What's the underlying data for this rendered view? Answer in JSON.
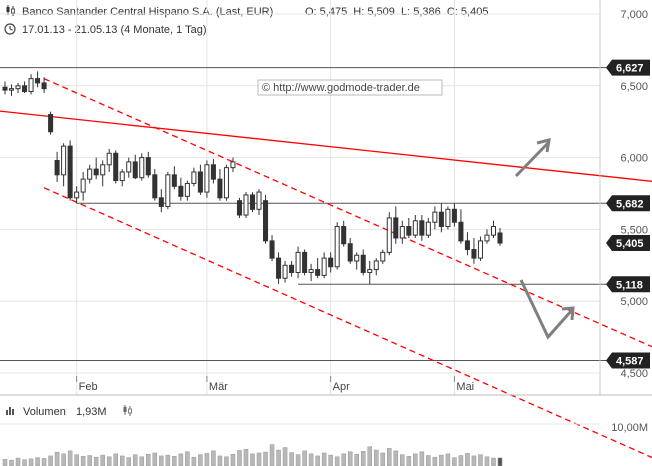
{
  "header": {
    "title": "Banco Santander Central Hispano S.A. (Last, EUR)",
    "ohlc": "O: 5,475  H: 5,509  L: 5,386  C: 5,405",
    "period": "17.01.13 - 21.05.13 (4 Monate, 1 Tag)",
    "chart_icon": "candlestick-icon",
    "clock_icon": "clock-icon"
  },
  "watermark": "© http://www.godmode-trader.de",
  "volume_panel": {
    "label": "Volumen",
    "value": "1,93M",
    "axis_label": "10,00M",
    "max_value_m": 10.0
  },
  "colors": {
    "candle": "#333333",
    "resistance_line": "#ff0000",
    "channel_lines": "#ff0000",
    "horizontal_levels": "#555555",
    "badge_bg": "#222222",
    "arrows": "#7f7f7f",
    "volume_bars": "#b8b8b8",
    "grid": "#e4e4e4"
  },
  "chart_data": {
    "type": "candlestick",
    "title": "Banco Santander Central Hispano S.A. (Last, EUR)",
    "ylim": [
      4.2,
      7.0
    ],
    "y_ticks": [
      "7,000",
      "6,500",
      "6,000",
      "5,500",
      "5,000",
      "4,500"
    ],
    "y_tick_values": [
      7.0,
      6.5,
      6.0,
      5.5,
      5.0,
      4.5
    ],
    "x_labels": [
      "Feb",
      "Mär",
      "Apr",
      "Mai"
    ],
    "x_label_days": [
      11,
      31,
      50,
      69
    ],
    "num_days": 86,
    "levels": [
      {
        "label": "6,627",
        "value": 6.627
      },
      {
        "label": "5,682",
        "value": 5.682
      },
      {
        "label": "5,118",
        "value": 5.118
      },
      {
        "label": "4,587",
        "value": 4.587
      }
    ],
    "last_price": {
      "label": "5,405",
      "value": 5.405
    },
    "level_segments": [
      {
        "value": 5.682,
        "from_day": 11,
        "to_day": 86
      },
      {
        "value": 5.118,
        "from_day": 45,
        "to_day": 86
      }
    ],
    "trend_lines": [
      {
        "name": "resistance",
        "style": "solid",
        "points": [
          [
            0,
            6.32
          ],
          [
            86,
            5.9
          ]
        ]
      },
      {
        "name": "channel-upper",
        "style": "dashed",
        "points": [
          [
            6,
            6.55
          ],
          [
            86,
            4.95
          ]
        ]
      },
      {
        "name": "channel-lower",
        "style": "dashed",
        "points": [
          [
            6,
            5.79
          ],
          [
            86,
            4.18
          ]
        ]
      }
    ],
    "ohlc": [
      [
        6.49,
        6.53,
        6.44,
        6.47
      ],
      [
        6.47,
        6.51,
        6.43,
        6.48
      ],
      [
        6.48,
        6.52,
        6.45,
        6.5
      ],
      [
        6.5,
        6.53,
        6.45,
        6.46
      ],
      [
        6.46,
        6.58,
        6.44,
        6.55
      ],
      [
        6.55,
        6.6,
        6.49,
        6.52
      ],
      [
        6.52,
        6.56,
        6.45,
        6.48
      ],
      [
        6.3,
        6.32,
        6.16,
        6.18
      ],
      [
        5.98,
        6.04,
        5.83,
        5.88
      ],
      [
        5.88,
        6.1,
        5.8,
        6.08
      ],
      [
        6.08,
        6.12,
        5.7,
        5.72
      ],
      [
        5.72,
        5.8,
        5.68,
        5.76
      ],
      [
        5.76,
        5.9,
        5.7,
        5.85
      ],
      [
        5.85,
        5.95,
        5.82,
        5.92
      ],
      [
        5.92,
        6.0,
        5.85,
        5.88
      ],
      [
        5.88,
        5.98,
        5.8,
        5.95
      ],
      [
        5.95,
        6.06,
        5.9,
        6.03
      ],
      [
        6.03,
        6.05,
        5.82,
        5.84
      ],
      [
        5.84,
        5.92,
        5.8,
        5.9
      ],
      [
        5.9,
        6.0,
        5.86,
        5.97
      ],
      [
        5.97,
        6.02,
        5.85,
        5.86
      ],
      [
        5.86,
        6.03,
        5.84,
        6.0
      ],
      [
        6.0,
        6.04,
        5.86,
        5.88
      ],
      [
        5.88,
        5.92,
        5.7,
        5.72
      ],
      [
        5.72,
        5.78,
        5.62,
        5.66
      ],
      [
        5.66,
        5.9,
        5.64,
        5.88
      ],
      [
        5.88,
        5.94,
        5.78,
        5.8
      ],
      [
        5.8,
        5.86,
        5.7,
        5.73
      ],
      [
        5.73,
        5.84,
        5.7,
        5.82
      ],
      [
        5.82,
        5.93,
        5.8,
        5.9
      ],
      [
        5.9,
        5.95,
        5.74,
        5.76
      ],
      [
        5.76,
        5.98,
        5.72,
        5.95
      ],
      [
        5.95,
        5.99,
        5.82,
        5.85
      ],
      [
        5.85,
        5.92,
        5.7,
        5.72
      ],
      [
        5.72,
        5.95,
        5.7,
        5.93
      ],
      [
        5.93,
        6.0,
        5.9,
        5.97
      ],
      [
        5.7,
        5.72,
        5.58,
        5.6
      ],
      [
        5.6,
        5.76,
        5.58,
        5.74
      ],
      [
        5.74,
        5.76,
        5.62,
        5.64
      ],
      [
        5.64,
        5.78,
        5.6,
        5.76
      ],
      [
        5.7,
        5.74,
        5.4,
        5.42
      ],
      [
        5.42,
        5.46,
        5.28,
        5.3
      ],
      [
        5.3,
        5.34,
        5.12,
        5.16
      ],
      [
        5.16,
        5.28,
        5.13,
        5.25
      ],
      [
        5.25,
        5.28,
        5.17,
        5.2
      ],
      [
        5.2,
        5.38,
        5.16,
        5.34
      ],
      [
        5.34,
        5.36,
        5.18,
        5.2
      ],
      [
        5.2,
        5.26,
        5.14,
        5.22
      ],
      [
        5.22,
        5.3,
        5.16,
        5.18
      ],
      [
        5.18,
        5.34,
        5.16,
        5.3
      ],
      [
        5.3,
        5.34,
        5.2,
        5.24
      ],
      [
        5.24,
        5.55,
        5.22,
        5.52
      ],
      [
        5.52,
        5.56,
        5.38,
        5.4
      ],
      [
        5.4,
        5.44,
        5.26,
        5.28
      ],
      [
        5.28,
        5.34,
        5.22,
        5.32
      ],
      [
        5.32,
        5.36,
        5.18,
        5.2
      ],
      [
        5.2,
        5.28,
        5.12,
        5.22
      ],
      [
        5.22,
        5.3,
        5.18,
        5.28
      ],
      [
        5.28,
        5.36,
        5.26,
        5.34
      ],
      [
        5.34,
        5.62,
        5.32,
        5.58
      ],
      [
        5.58,
        5.66,
        5.4,
        5.44
      ],
      [
        5.44,
        5.56,
        5.4,
        5.52
      ],
      [
        5.52,
        5.58,
        5.44,
        5.46
      ],
      [
        5.46,
        5.6,
        5.44,
        5.56
      ],
      [
        5.56,
        5.6,
        5.42,
        5.46
      ],
      [
        5.46,
        5.58,
        5.44,
        5.55
      ],
      [
        5.55,
        5.66,
        5.5,
        5.62
      ],
      [
        5.62,
        5.68,
        5.48,
        5.52
      ],
      [
        5.52,
        5.66,
        5.5,
        5.64
      ],
      [
        5.64,
        5.68,
        5.52,
        5.55
      ],
      [
        5.55,
        5.64,
        5.4,
        5.42
      ],
      [
        5.42,
        5.48,
        5.32,
        5.36
      ],
      [
        5.36,
        5.44,
        5.26,
        5.3
      ],
      [
        5.3,
        5.45,
        5.28,
        5.42
      ],
      [
        5.42,
        5.5,
        5.4,
        5.46
      ],
      [
        5.46,
        5.56,
        5.44,
        5.52
      ],
      [
        5.475,
        5.509,
        5.386,
        5.405
      ]
    ],
    "volume": [
      1.6,
      1.4,
      1.9,
      1.5,
      1.7,
      2.0,
      1.8,
      2.4,
      3.3,
      2.9,
      3.6,
      2.7,
      2.3,
      2.5,
      2.1,
      2.6,
      2.2,
      2.9,
      2.4,
      2.0,
      2.7,
      2.2,
      2.8,
      3.1,
      2.4,
      2.6,
      2.3,
      2.9,
      3.4,
      2.1,
      2.7,
      3.0,
      3.6,
      2.4,
      2.2,
      2.8,
      3.7,
      4.0,
      2.9,
      3.1,
      3.3,
      5.1,
      3.8,
      4.4,
      3.2,
      2.7,
      3.6,
      2.9,
      2.4,
      3.1,
      2.6,
      2.2,
      2.9,
      3.4,
      2.8,
      3.5,
      4.6,
      3.8,
      3.1,
      4.2,
      3.6,
      2.7,
      2.3,
      2.9,
      3.4,
      2.5,
      2.1,
      2.6,
      2.9,
      2.0,
      2.5,
      3.0,
      2.4,
      2.7,
      2.2,
      1.9,
      1.93
    ]
  }
}
